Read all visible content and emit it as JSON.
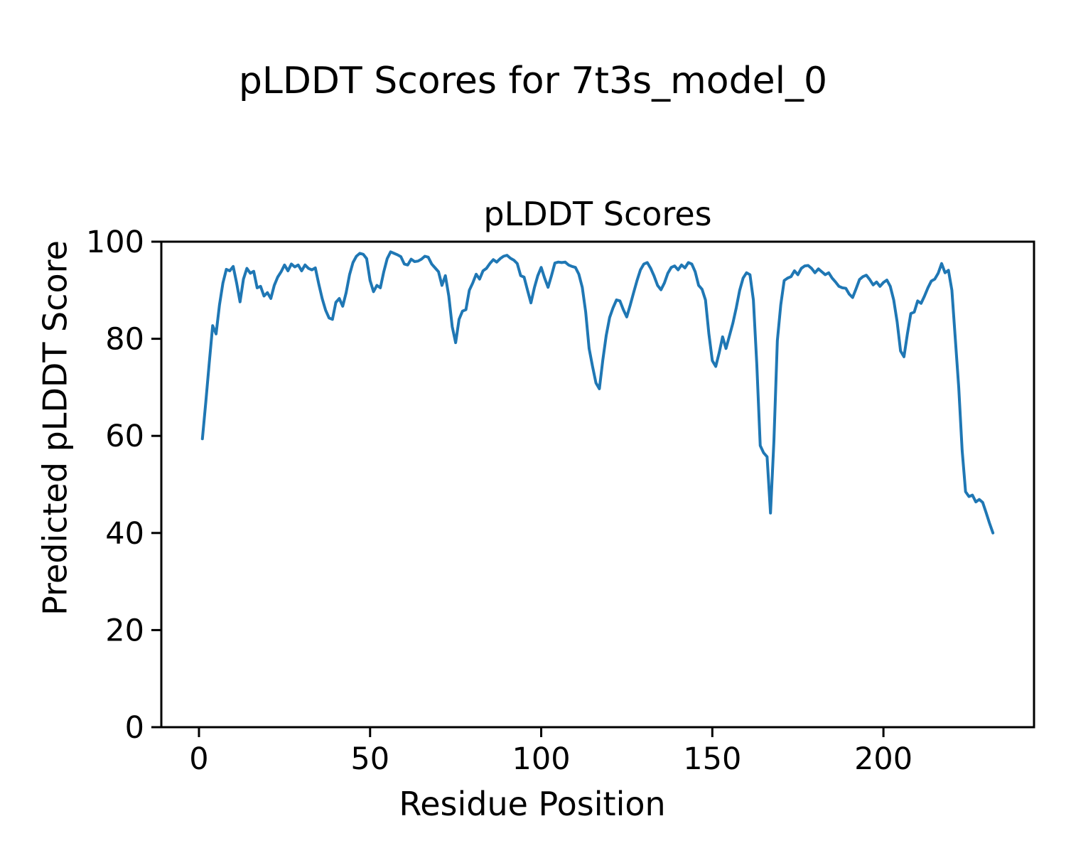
{
  "figure": {
    "suptitle": "pLDDT Scores for 7t3s_model_0",
    "background": "#ffffff"
  },
  "chart_data": {
    "type": "line",
    "title": "pLDDT Scores",
    "xlabel": "Residue Position",
    "ylabel": "Predicted pLDDT Score",
    "xlim": [
      -11,
      244
    ],
    "ylim": [
      0,
      100
    ],
    "x_ticks": [
      0,
      50,
      100,
      150,
      200
    ],
    "y_ticks": [
      0,
      20,
      40,
      60,
      80,
      100
    ],
    "grid": false,
    "legend": false,
    "axis_color": "#000000",
    "text_color": "#000000",
    "series": [
      {
        "name": "pLDDT",
        "color": "#1f77b4",
        "x_start": 1,
        "x_step": 1,
        "values": [
          59.4,
          67,
          75,
          82.7,
          81,
          87,
          91.5,
          94.3,
          94,
          94.9,
          91.5,
          87.6,
          92.3,
          94.5,
          93.5,
          93.9,
          90.5,
          90.8,
          88.8,
          89.5,
          88.3,
          91,
          92.7,
          93.8,
          95.2,
          94,
          95.4,
          94.8,
          95.2,
          94,
          95.2,
          94.5,
          94.2,
          94.6,
          91.3,
          88.3,
          85.9,
          84.3,
          84,
          87.5,
          88.3,
          86.7,
          89.5,
          93.2,
          95.7,
          97,
          97.6,
          97.4,
          96.5,
          92,
          89.7,
          91,
          90.5,
          93.8,
          96.5,
          97.9,
          97.6,
          97.3,
          96.9,
          95.4,
          95.2,
          96.4,
          95.9,
          96,
          96.4,
          97,
          96.8,
          95.4,
          94.6,
          93.8,
          91,
          93,
          88.8,
          82.5,
          79.2,
          84,
          85.7,
          86,
          90,
          91.5,
          93.3,
          92.3,
          94,
          94.5,
          95.5,
          96.3,
          95.8,
          96.5,
          97,
          97.2,
          96.6,
          96.2,
          95.5,
          93,
          92.7,
          90,
          87.4,
          90.5,
          93,
          94.7,
          92.5,
          90.6,
          93,
          95.6,
          95.8,
          95.7,
          95.8,
          95.2,
          94.9,
          94.7,
          93.3,
          90.6,
          85.5,
          78,
          74.3,
          70.9,
          69.7,
          75.6,
          80.7,
          84.4,
          86.4,
          88,
          87.8,
          86,
          84.5,
          86.9,
          89.5,
          92,
          94.2,
          95.4,
          95.7,
          94.5,
          92.9,
          91,
          90.1,
          91.5,
          93.5,
          94.7,
          95,
          94.2,
          95.2,
          94.6,
          95.7,
          95.4,
          93.8,
          91,
          90.2,
          88,
          81,
          75.5,
          74.3,
          77.1,
          80.4,
          78,
          80.6,
          83.2,
          86.4,
          90,
          92.5,
          93.6,
          93.2,
          88,
          74.7,
          58,
          56.5,
          55.7,
          44.1,
          59,
          79.6,
          87,
          92,
          92.5,
          92.8,
          94,
          93.2,
          94.5,
          95,
          95.1,
          94.5,
          93.6,
          94.4,
          93.8,
          93.2,
          93.6,
          92.5,
          91.7,
          90.8,
          90.5,
          90.4,
          89.2,
          88.5,
          90.3,
          92.2,
          92.8,
          93.1,
          92.2,
          91.1,
          91.7,
          90.8,
          91.6,
          92.1,
          90.8,
          88,
          83.5,
          77.5,
          76.3,
          81,
          85.2,
          85.5,
          87.8,
          87.3,
          88.8,
          90.5,
          91.9,
          92.3,
          93.5,
          95.5,
          93.6,
          94.1,
          90,
          80,
          70,
          57,
          48.5,
          47.5,
          47.8,
          46.4,
          46.9,
          46.3,
          44.2,
          42,
          40
        ]
      }
    ]
  }
}
